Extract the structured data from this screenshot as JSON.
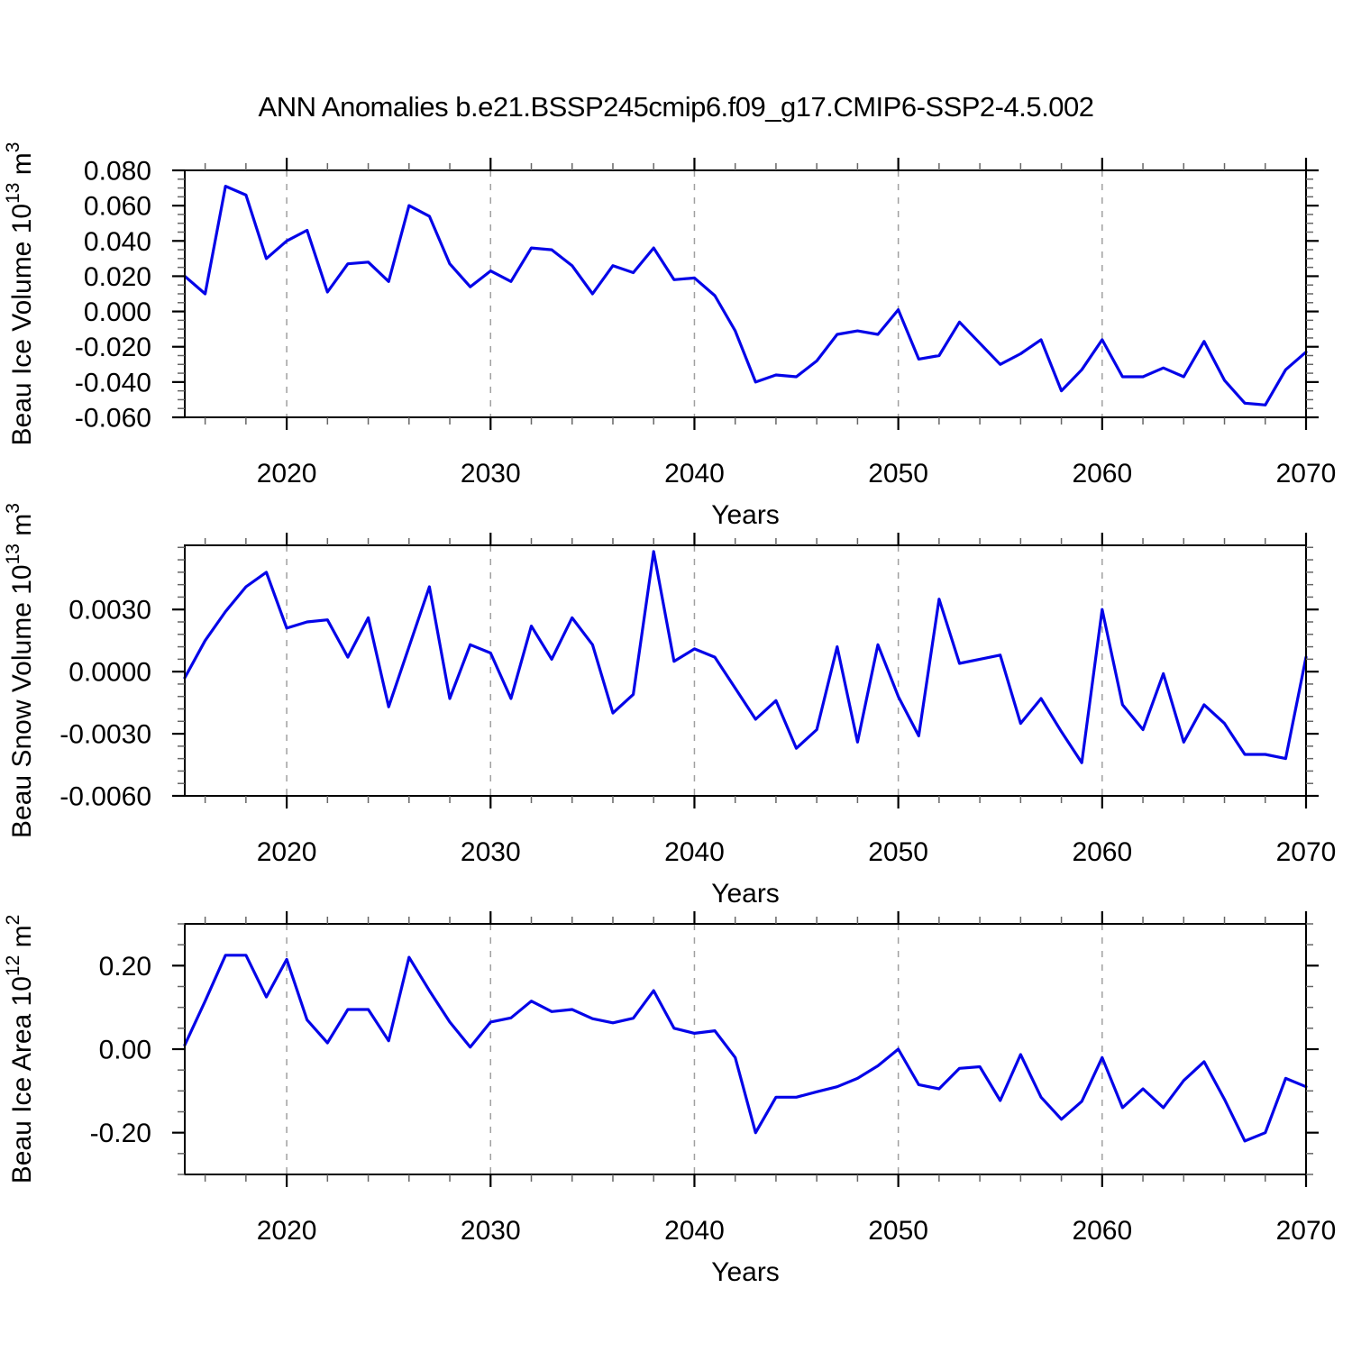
{
  "title": "ANN Anomalies b.e21.BSSP245cmip6.f09_g17.CMIP6-SSP2-4.5.002",
  "line_color": "#0404e8",
  "years": [
    2015,
    2016,
    2017,
    2018,
    2019,
    2020,
    2021,
    2022,
    2023,
    2024,
    2025,
    2026,
    2027,
    2028,
    2029,
    2030,
    2031,
    2032,
    2033,
    2034,
    2035,
    2036,
    2037,
    2038,
    2039,
    2040,
    2041,
    2042,
    2043,
    2044,
    2045,
    2046,
    2047,
    2048,
    2049,
    2050,
    2051,
    2052,
    2053,
    2054,
    2055,
    2056,
    2057,
    2058,
    2059,
    2060,
    2061,
    2062,
    2063,
    2064,
    2065,
    2066,
    2067,
    2068,
    2069,
    2070
  ],
  "x_axis": {
    "label": "Years",
    "range": [
      2015,
      2070
    ],
    "minor_step": 2,
    "gridlines": [
      2020,
      2030,
      2040,
      2050,
      2060
    ],
    "major_ticks": [
      {
        "v": 2020,
        "label": "2020"
      },
      {
        "v": 2030,
        "label": "2030"
      },
      {
        "v": 2040,
        "label": "2040"
      },
      {
        "v": 2050,
        "label": "2050"
      },
      {
        "v": 2060,
        "label": "2060"
      },
      {
        "v": 2070,
        "label": "2070"
      }
    ]
  },
  "chart_data": [
    {
      "type": "line",
      "name": "beau-ice-volume",
      "ylabel_parts": [
        {
          "text": "Beau Ice Volume 10",
          "sup": false
        },
        {
          "text": "13",
          "sup": true
        },
        {
          "text": " m",
          "sup": false
        },
        {
          "text": "3",
          "sup": true
        }
      ],
      "ylim": [
        -0.06,
        0.08
      ],
      "y_minor_step": 0.005,
      "y_major_ticks": [
        {
          "v": 0.08,
          "label": "0.080"
        },
        {
          "v": 0.06,
          "label": "0.060"
        },
        {
          "v": 0.04,
          "label": "0.040"
        },
        {
          "v": 0.02,
          "label": "0.020"
        },
        {
          "v": 0.0,
          "label": "0.000"
        },
        {
          "v": -0.02,
          "label": "-0.020"
        },
        {
          "v": -0.04,
          "label": "-0.040"
        },
        {
          "v": -0.06,
          "label": "-0.060"
        }
      ],
      "values": [
        0.02,
        0.01,
        0.071,
        0.066,
        0.03,
        0.04,
        0.046,
        0.011,
        0.027,
        0.028,
        0.017,
        0.06,
        0.054,
        0.027,
        0.014,
        0.023,
        0.017,
        0.036,
        0.035,
        0.026,
        0.01,
        0.026,
        0.022,
        0.036,
        0.018,
        0.019,
        0.009,
        -0.011,
        -0.04,
        -0.036,
        -0.037,
        -0.028,
        -0.013,
        -0.011,
        -0.013,
        0.001,
        -0.027,
        -0.025,
        -0.006,
        -0.018,
        -0.03,
        -0.024,
        -0.016,
        -0.045,
        -0.033,
        -0.016,
        -0.037,
        -0.037,
        -0.032,
        -0.037,
        -0.017,
        -0.039,
        -0.052,
        -0.053,
        -0.033,
        -0.023
      ]
    },
    {
      "type": "line",
      "name": "beau-snow-volume",
      "ylabel_parts": [
        {
          "text": "Beau Snow Volume 10",
          "sup": false
        },
        {
          "text": "13",
          "sup": true
        },
        {
          "text": " m",
          "sup": false
        },
        {
          "text": "3",
          "sup": true
        }
      ],
      "ylim": [
        -0.006,
        0.0061
      ],
      "y_minor_step": 0.0006,
      "y_major_ticks": [
        {
          "v": 0.003,
          "label": "0.0030"
        },
        {
          "v": 0.0,
          "label": "0.0000"
        },
        {
          "v": -0.003,
          "label": "-0.0030"
        },
        {
          "v": -0.006,
          "label": "-0.0060"
        }
      ],
      "values": [
        -0.0003,
        0.0015,
        0.0029,
        0.0041,
        0.0048,
        0.0021,
        0.0024,
        0.0025,
        0.0007,
        0.0026,
        -0.0017,
        0.0012,
        0.0041,
        -0.0013,
        0.0013,
        0.0009,
        -0.0013,
        0.0022,
        0.0006,
        0.0026,
        0.0013,
        -0.002,
        -0.0011,
        0.0058,
        0.0005,
        0.0011,
        0.0007,
        -0.0008,
        -0.0023,
        -0.0014,
        -0.0037,
        -0.0028,
        0.0012,
        -0.0034,
        0.0013,
        -0.0012,
        -0.0031,
        0.0035,
        0.0004,
        0.0006,
        0.0008,
        -0.0025,
        -0.0013,
        -0.0029,
        -0.0044,
        0.003,
        -0.0016,
        -0.0028,
        -0.0001,
        -0.0034,
        -0.0016,
        -0.0025,
        -0.004,
        -0.004,
        -0.0042,
        0.0007
      ]
    },
    {
      "type": "line",
      "name": "beau-ice-area",
      "ylabel_parts": [
        {
          "text": "Beau Ice Area 10",
          "sup": false
        },
        {
          "text": "12",
          "sup": true
        },
        {
          "text": " m",
          "sup": false
        },
        {
          "text": "2",
          "sup": true
        }
      ],
      "ylim": [
        -0.3,
        0.3
      ],
      "y_minor_step": 0.05,
      "y_major_ticks": [
        {
          "v": 0.2,
          "label": "0.20"
        },
        {
          "v": 0.0,
          "label": "0.00"
        },
        {
          "v": -0.2,
          "label": "-0.20"
        }
      ],
      "values": [
        0.01,
        0.115,
        0.225,
        0.225,
        0.125,
        0.215,
        0.07,
        0.015,
        0.095,
        0.095,
        0.02,
        0.22,
        0.14,
        0.065,
        0.005,
        0.065,
        0.075,
        0.115,
        0.09,
        0.095,
        0.073,
        0.063,
        0.074,
        0.14,
        0.05,
        0.038,
        0.044,
        -0.02,
        -0.2,
        -0.115,
        -0.115,
        -0.102,
        -0.09,
        -0.07,
        -0.04,
        0.0,
        -0.085,
        -0.095,
        -0.046,
        -0.042,
        -0.123,
        -0.013,
        -0.115,
        -0.168,
        -0.125,
        -0.02,
        -0.14,
        -0.095,
        -0.14,
        -0.075,
        -0.03,
        -0.12,
        -0.22,
        -0.2,
        -0.07,
        -0.09
      ]
    }
  ]
}
